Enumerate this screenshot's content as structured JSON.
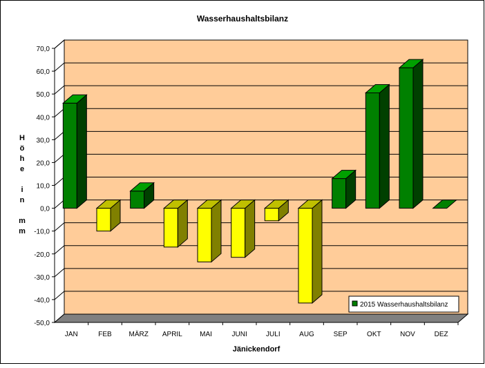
{
  "chart_data": {
    "type": "bar",
    "title": "Wasserhaushaltsbilanz",
    "xlabel": "Jänickendorf",
    "ylabel_letters": [
      "H",
      "ö",
      "h",
      "e",
      "",
      "i",
      "n",
      "",
      "m",
      "m"
    ],
    "categories": [
      "JAN",
      "FEB",
      "MÄRZ",
      "APRIL",
      "MAI",
      "JUNI",
      "JULI",
      "AUG",
      "SEP",
      "OKT",
      "NOV",
      "DEZ"
    ],
    "series": [
      {
        "name": "2015 Wasserhaushaltsbilanz",
        "values": [
          46.0,
          -10.0,
          7.5,
          -17.0,
          -23.5,
          -21.5,
          -5.5,
          -41.5,
          13.0,
          50.5,
          61.5,
          0.0
        ]
      }
    ],
    "ylim": [
      -50,
      70
    ],
    "ytick_step": 10,
    "ytick_labels": [
      "70,0",
      "60,0",
      "50,0",
      "40,0",
      "30,0",
      "20,0",
      "10,0",
      "0,0",
      "-10,0",
      "-20,0",
      "-30,0",
      "-40,0",
      "-50,0"
    ],
    "grid": true,
    "legend_position": "bottom-right",
    "colors": {
      "positive_front": "#008000",
      "positive_side": "#004000",
      "positive_top": "#00a000",
      "negative_front": "#ffff00",
      "negative_side": "#808000",
      "negative_top": "#c0c000",
      "wall": "#ffcc99",
      "floor": "#808080",
      "frame": "#000000"
    }
  }
}
